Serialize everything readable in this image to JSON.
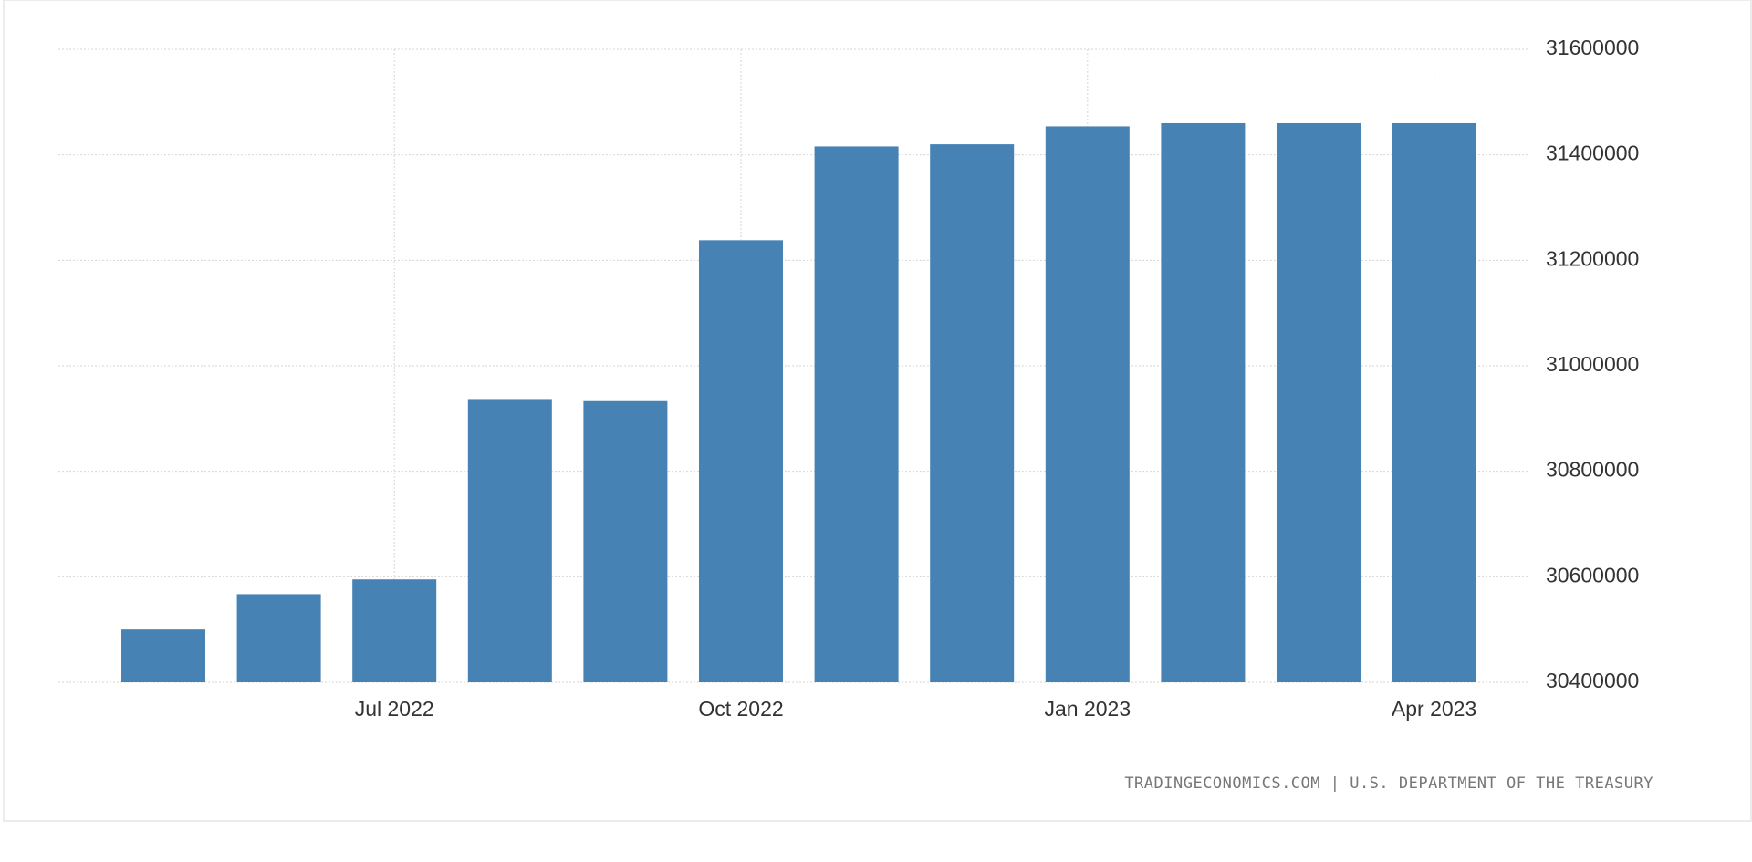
{
  "chart_data": {
    "type": "bar",
    "categories": [
      null,
      null,
      "Jul 2022",
      null,
      null,
      "Oct 2022",
      null,
      null,
      "Jan 2023",
      null,
      null,
      "Apr 2023"
    ],
    "values": [
      30500000,
      30567000,
      30595000,
      30937000,
      30933000,
      31238000,
      31416000,
      31420000,
      31454000,
      31460000,
      31460000,
      31460000
    ],
    "color": "#4682b4",
    "ylim": [
      30400000,
      31600000
    ],
    "yticks": [
      30400000,
      30600000,
      30800000,
      31000000,
      31200000,
      31400000,
      31600000
    ],
    "grid": true,
    "source": "TRADINGECONOMICS.COM | U.S. DEPARTMENT OF THE TREASURY"
  }
}
